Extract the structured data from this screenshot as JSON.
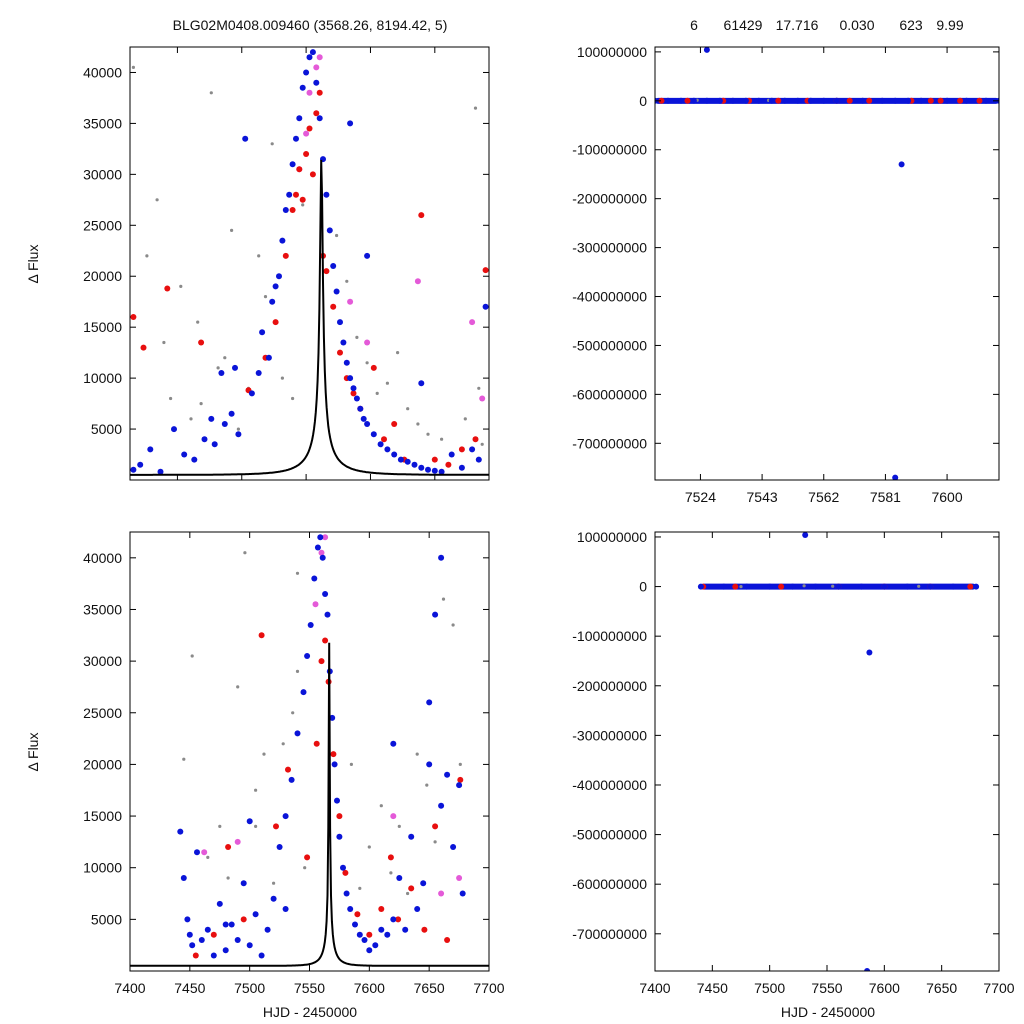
{
  "header": {
    "left_title": "BLG02M0408.009460 (3568.26, 8194.42,    5)",
    "right_stats": [
      "6",
      "61429",
      "17.716",
      "0.030",
      "623",
      "9.99"
    ]
  },
  "colors": {
    "blue": "#0a14d8",
    "red": "#e80f0f",
    "magenta": "#e45ad8",
    "grey": "#8a8a8a",
    "model": "#000000"
  },
  "labels": {
    "ylabel_top": "Δ Flux",
    "ylabel_bottom": "Δ Flux",
    "xlabel_left": "HJD - 2450000",
    "xlabel_right": "HJD - 2450000"
  },
  "chart_data": [
    {
      "id": "top-left",
      "type": "scatter",
      "xlim": [
        7510,
        7616
      ],
      "ylim": [
        0,
        42500
      ],
      "xticks": [
        7524,
        7543,
        7562,
        7581,
        7600
      ],
      "yticks": [
        5000,
        10000,
        15000,
        20000,
        25000,
        30000,
        35000,
        40000
      ],
      "ytick_labels": [
        "5000",
        "10000",
        "15000",
        "20000",
        "25000",
        "30000",
        "35000",
        "40000"
      ],
      "model": {
        "t0": 7566.5,
        "tE": 12,
        "u0": 0.031,
        "fs": 1000,
        "base": 500
      },
      "series": [
        {
          "color": "grey",
          "x": [
            7511,
            7515,
            7518,
            7520,
            7522,
            7525,
            7528,
            7531,
            7534,
            7536,
            7540,
            7542,
            7545,
            7548,
            7550,
            7552,
            7555,
            7558,
            7561,
            7571,
            7574,
            7577,
            7580,
            7583,
            7586,
            7589,
            7592,
            7595,
            7598,
            7602,
            7605,
            7609,
            7612,
            7614,
            7613,
            7530,
            7538
          ],
          "y": [
            40500,
            22000,
            27500,
            13500,
            8000,
            19000,
            6000,
            7500,
            38000,
            11000,
            24500,
            5000,
            9000,
            22000,
            18000,
            33000,
            10000,
            8000,
            27000,
            24000,
            19500,
            14000,
            11500,
            8500,
            9500,
            12500,
            7000,
            5500,
            4500,
            4000,
            2500,
            6000,
            36500,
            3500,
            9000,
            15500,
            12000
          ]
        },
        {
          "color": "magenta",
          "x": [
            7560,
            7562,
            7563,
            7565,
            7566,
            7575,
            7580,
            7595,
            7611,
            7614
          ],
          "y": [
            30500,
            34000,
            38000,
            40500,
            41500,
            17500,
            13500,
            19500,
            15500,
            8000
          ]
        },
        {
          "color": "red",
          "x": [
            7511,
            7514,
            7521,
            7531,
            7545,
            7550,
            7553,
            7556,
            7558,
            7559,
            7560,
            7561,
            7562,
            7563,
            7564,
            7565,
            7566,
            7567,
            7568,
            7570,
            7572,
            7574,
            7576,
            7578,
            7582,
            7585,
            7588,
            7591,
            7596,
            7600,
            7604,
            7608,
            7612,
            7615
          ],
          "y": [
            16000,
            13000,
            18800,
            13500,
            8800,
            12000,
            15500,
            22000,
            26500,
            28000,
            30500,
            27500,
            32000,
            34500,
            30000,
            36000,
            38000,
            22000,
            20500,
            17000,
            12500,
            10000,
            8500,
            7000,
            11000,
            4000,
            5500,
            2000,
            26000,
            2000,
            1500,
            3000,
            4000,
            20600
          ]
        },
        {
          "color": "blue",
          "x": [
            7511,
            7513,
            7516,
            7519,
            7523,
            7526,
            7529,
            7532,
            7535,
            7538,
            7540,
            7542,
            7544,
            7546,
            7548,
            7549,
            7551,
            7552,
            7553,
            7554,
            7555,
            7556,
            7557,
            7558,
            7559,
            7560,
            7561,
            7562,
            7563,
            7564,
            7565,
            7566,
            7567,
            7568,
            7569,
            7570,
            7571,
            7572,
            7573,
            7574,
            7575,
            7576,
            7577,
            7578,
            7579,
            7580,
            7582,
            7584,
            7586,
            7588,
            7590,
            7592,
            7594,
            7596,
            7598,
            7600,
            7602,
            7605,
            7608,
            7611,
            7613,
            7615,
            7537,
            7541,
            7534,
            7575,
            7580,
            7596
          ],
          "y": [
            1000,
            1500,
            3000,
            800,
            5000,
            2500,
            2000,
            4000,
            3500,
            5500,
            6500,
            4500,
            33500,
            8500,
            10500,
            14500,
            12000,
            17500,
            19000,
            20000,
            23500,
            26500,
            28000,
            31000,
            33500,
            35500,
            38500,
            40000,
            41500,
            42000,
            39000,
            35500,
            31500,
            28000,
            24500,
            21000,
            18500,
            15500,
            13500,
            11500,
            10000,
            9000,
            8000,
            7000,
            6000,
            5500,
            4500,
            3500,
            3000,
            2500,
            2000,
            1800,
            1500,
            1200,
            1000,
            900,
            800,
            2500,
            1200,
            3000,
            2000,
            17000,
            10500,
            11000,
            6000,
            35000,
            22000,
            9500
          ]
        }
      ]
    },
    {
      "id": "top-right",
      "type": "scatter",
      "xlim": [
        7510,
        7616
      ],
      "ylim": [
        -775000000,
        110000000
      ],
      "xticks": [
        7524,
        7543,
        7562,
        7581,
        7600
      ],
      "yticks": [
        100000000,
        0,
        -100000000,
        -200000000,
        -300000000,
        -400000000,
        -500000000,
        -600000000,
        -700000000
      ],
      "ytick_labels": [
        "100000000",
        "0",
        "-100000000",
        "-200000000",
        "-300000000",
        "-400000000",
        "-500000000",
        "-600000000",
        "-700000000"
      ],
      "band": {
        "y": 0,
        "x_start": 7510,
        "x_end": 7616
      },
      "series": [
        {
          "color": "grey",
          "x": [
            7523,
            7526,
            7545,
            7570,
            7595
          ],
          "y": [
            1200000,
            2500000,
            800000,
            1500000,
            1100000
          ]
        },
        {
          "color": "red",
          "x": [
            7512,
            7520,
            7531,
            7539,
            7548,
            7557,
            7566,
            7570,
            7576,
            7589,
            7595,
            7598,
            7604,
            7610
          ],
          "y": [
            0,
            0,
            0,
            0,
            0,
            0,
            0,
            0,
            0,
            0,
            0,
            0,
            0,
            0
          ]
        },
        {
          "color": "blue",
          "x": [
            7510,
            7514,
            7518,
            7522,
            7526,
            7530,
            7534,
            7538,
            7542,
            7546,
            7550,
            7554,
            7558,
            7562,
            7566,
            7574,
            7580,
            7584,
            7588,
            7592,
            7600,
            7606,
            7612,
            7616,
            7526,
            7586,
            7584
          ],
          "y": [
            0,
            0,
            0,
            0,
            0,
            0,
            0,
            0,
            0,
            0,
            0,
            0,
            0,
            0,
            0,
            0,
            0,
            0,
            0,
            0,
            0,
            0,
            0,
            0,
            104000000,
            -130000000,
            -770000000
          ]
        }
      ]
    },
    {
      "id": "bottom-left",
      "type": "scatter",
      "xlim": [
        7400,
        7700
      ],
      "ylim": [
        0,
        42500
      ],
      "xticks": [
        7400,
        7450,
        7500,
        7550,
        7600,
        7650,
        7700
      ],
      "yticks": [
        5000,
        10000,
        15000,
        20000,
        25000,
        30000,
        35000,
        40000
      ],
      "ytick_labels": [
        "5000",
        "10000",
        "15000",
        "20000",
        "25000",
        "30000",
        "35000",
        "40000"
      ],
      "model": {
        "t0": 7566.5,
        "tE": 12,
        "u0": 0.031,
        "fs": 1000,
        "base": 500
      },
      "series": [
        {
          "color": "grey",
          "x": [
            7445,
            7452,
            7465,
            7475,
            7482,
            7490,
            7496,
            7505,
            7512,
            7520,
            7528,
            7536,
            7540,
            7546,
            7585,
            7592,
            7600,
            7610,
            7618,
            7625,
            7632,
            7640,
            7648,
            7655,
            7662,
            7670,
            7676,
            7540,
            7505
          ],
          "y": [
            20500,
            30500,
            11000,
            14000,
            9000,
            27500,
            40500,
            17500,
            21000,
            8500,
            22000,
            25000,
            38500,
            10000,
            20000,
            8000,
            12000,
            16000,
            9500,
            14000,
            7500,
            21000,
            18000,
            12500,
            36000,
            33500,
            20000,
            29000,
            14000
          ]
        },
        {
          "color": "magenta",
          "x": [
            7462,
            7490,
            7555,
            7560,
            7563,
            7620,
            7660,
            7675
          ],
          "y": [
            11500,
            12500,
            35500,
            40500,
            42000,
            15000,
            7500,
            9000
          ]
        },
        {
          "color": "red",
          "x": [
            7455,
            7470,
            7482,
            7495,
            7510,
            7522,
            7532,
            7548,
            7556,
            7560,
            7563,
            7566,
            7570,
            7575,
            7580,
            7590,
            7600,
            7610,
            7618,
            7624,
            7635,
            7646,
            7655,
            7665,
            7676
          ],
          "y": [
            1500,
            3500,
            12000,
            5000,
            32500,
            14000,
            19500,
            11000,
            22000,
            30000,
            32000,
            28000,
            21000,
            15000,
            9500,
            5500,
            3500,
            6000,
            11000,
            5000,
            8000,
            4000,
            14000,
            3000,
            18500
          ]
        },
        {
          "color": "blue",
          "x": [
            7442,
            7445,
            7448,
            7452,
            7456,
            7460,
            7465,
            7470,
            7475,
            7480,
            7485,
            7490,
            7495,
            7500,
            7505,
            7510,
            7515,
            7520,
            7525,
            7530,
            7535,
            7540,
            7545,
            7548,
            7551,
            7554,
            7557,
            7559,
            7561,
            7563,
            7565,
            7567,
            7569,
            7571,
            7573,
            7575,
            7578,
            7581,
            7584,
            7588,
            7592,
            7596,
            7600,
            7605,
            7610,
            7615,
            7620,
            7625,
            7630,
            7635,
            7640,
            7645,
            7650,
            7655,
            7660,
            7665,
            7670,
            7675,
            7678,
            7450,
            7480,
            7500,
            7530,
            7620,
            7650,
            7660
          ],
          "y": [
            13500,
            9000,
            5000,
            2500,
            11500,
            3000,
            4000,
            1500,
            6500,
            2000,
            4500,
            3000,
            8500,
            2500,
            5500,
            1500,
            4000,
            7000,
            12000,
            15000,
            18500,
            23000,
            27000,
            30500,
            33500,
            38000,
            41000,
            42000,
            40000,
            36500,
            34500,
            29000,
            24500,
            20000,
            16500,
            13000,
            10000,
            7500,
            6000,
            4500,
            3500,
            3000,
            2000,
            2500,
            4000,
            3500,
            5000,
            9000,
            4000,
            13000,
            6000,
            8500,
            20000,
            34500,
            16000,
            19000,
            12000,
            18000,
            7500,
            3500,
            4500,
            14500,
            6000,
            22000,
            26000,
            40000
          ]
        }
      ]
    },
    {
      "id": "bottom-right",
      "type": "scatter",
      "xlim": [
        7400,
        7700
      ],
      "ylim": [
        -775000000,
        110000000
      ],
      "xticks": [
        7400,
        7450,
        7500,
        7550,
        7600,
        7650,
        7700
      ],
      "yticks": [
        100000000,
        0,
        -100000000,
        -200000000,
        -300000000,
        -400000000,
        -500000000,
        -600000000,
        -700000000
      ],
      "ytick_labels": [
        "100000000",
        "0",
        "-100000000",
        "-200000000",
        "-300000000",
        "-400000000",
        "-500000000",
        "-600000000",
        "-700000000"
      ],
      "band": {
        "y": 0,
        "x_start": 7440,
        "x_end": 7680
      },
      "series": [
        {
          "color": "grey",
          "x": [
            7475,
            7530,
            7555,
            7600,
            7630
          ],
          "y": [
            2000,
            1500000,
            800000,
            1200000,
            600000
          ]
        },
        {
          "color": "red",
          "x": [
            7442,
            7470,
            7510,
            7560,
            7600,
            7640,
            7675
          ],
          "y": [
            0,
            0,
            0,
            0,
            0,
            0,
            0
          ]
        },
        {
          "color": "blue",
          "x": [
            7440,
            7460,
            7480,
            7500,
            7520,
            7540,
            7560,
            7580,
            7600,
            7620,
            7640,
            7660,
            7680,
            7531,
            7587,
            7585
          ],
          "y": [
            0,
            0,
            0,
            0,
            0,
            0,
            0,
            0,
            0,
            0,
            0,
            0,
            0,
            104000000,
            -133000000,
            -775000000
          ]
        }
      ]
    }
  ]
}
